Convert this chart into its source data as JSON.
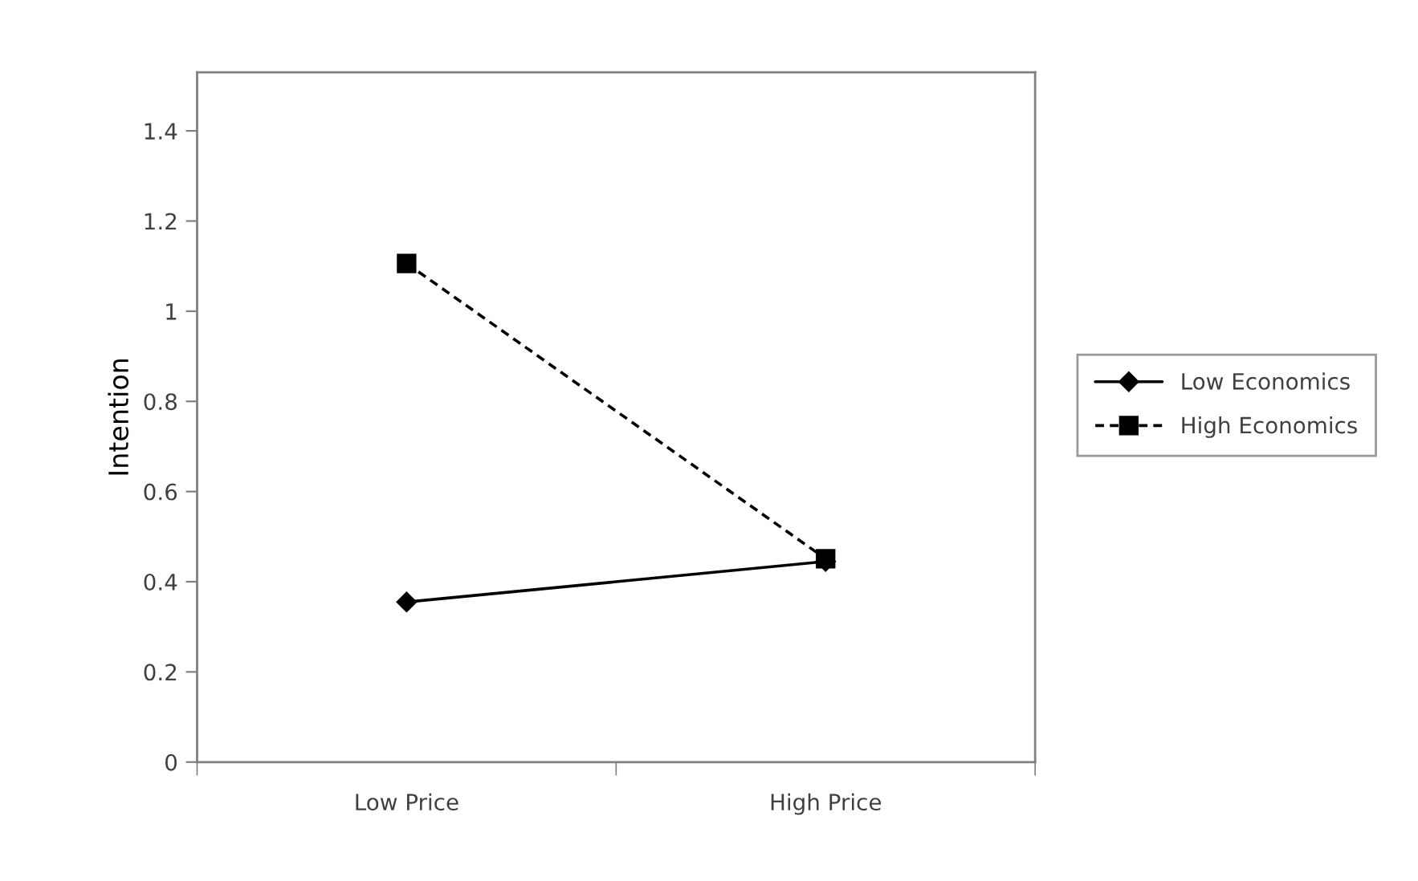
{
  "chart_data": {
    "type": "line",
    "ylabel": "Intention",
    "categories": [
      "Low Price",
      "High Price"
    ],
    "series": [
      {
        "name": "Low Economics",
        "color": "#000000",
        "marker": "diamond",
        "line_style": "solid",
        "values": [
          0.355,
          0.445
        ]
      },
      {
        "name": "High Economics",
        "color": "#000000",
        "marker": "square",
        "line_style": "dashed",
        "values": [
          1.106,
          0.451
        ]
      }
    ],
    "ylim": [
      0,
      1.53
    ],
    "yticks": [
      0,
      0.2,
      0.4,
      0.6,
      0.8,
      1,
      1.2,
      1.4
    ],
    "grid": false,
    "legend": "right"
  }
}
